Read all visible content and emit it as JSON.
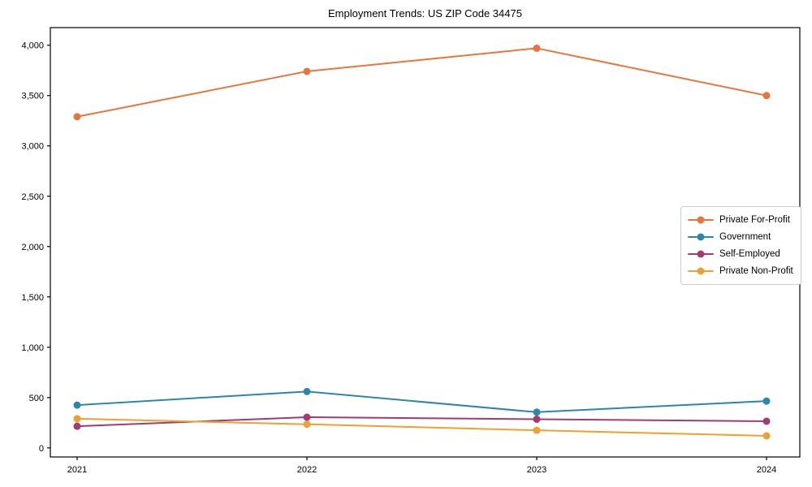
{
  "chart_data": {
    "type": "line",
    "title": "Employment Trends: US ZIP Code 34475",
    "x": [
      "2021",
      "2022",
      "2023",
      "2024"
    ],
    "series": [
      {
        "name": "Private For-Profit",
        "color": "#E8763C",
        "values": [
          3290,
          3740,
          3970,
          3500
        ]
      },
      {
        "name": "Government",
        "color": "#2E86AB",
        "values": [
          425,
          560,
          355,
          465
        ]
      },
      {
        "name": "Self-Employed",
        "color": "#A23B72",
        "values": [
          215,
          305,
          285,
          265
        ]
      },
      {
        "name": "Private Non-Profit",
        "color": "#F0A030",
        "values": [
          290,
          235,
          175,
          120
        ]
      }
    ],
    "xlabel": "",
    "ylabel": "",
    "ylim": [
      -90,
      4175
    ],
    "yticks": [
      0,
      500,
      1000,
      1500,
      2000,
      2500,
      3000,
      3500,
      4000
    ],
    "ytick_labels": [
      "0",
      "500",
      "1,000",
      "1,500",
      "2,000",
      "2,500",
      "3,000",
      "3,500",
      "4,000"
    ],
    "grid": false,
    "legend_position": "right-middle",
    "axis_color": "#000000",
    "background_color": "#ffffff"
  }
}
